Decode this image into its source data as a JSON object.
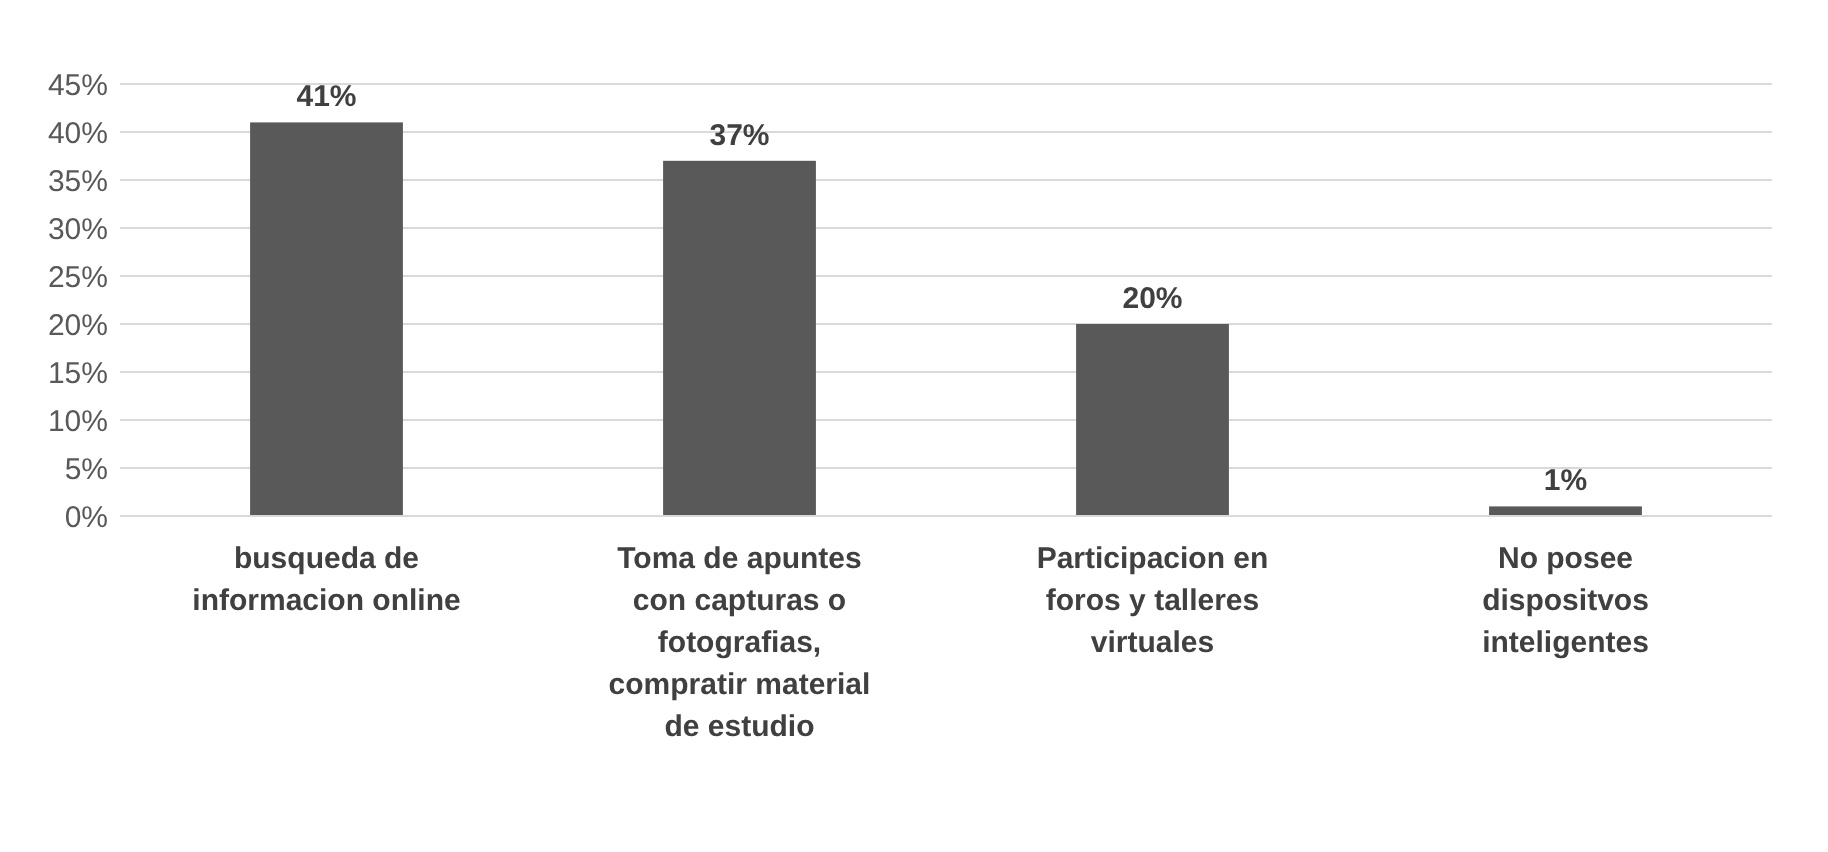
{
  "chart_data": {
    "type": "bar",
    "categories": [
      "busqueda de informacion online",
      "Toma de apuntes con capturas o fotografias, compratir material de estudio",
      "Participacion en foros y talleres virtuales",
      "No posee dispositvos inteligentes"
    ],
    "values": [
      41,
      37,
      20,
      1
    ],
    "value_labels": [
      "41%",
      "37%",
      "20%",
      "1%"
    ],
    "color": "#595959",
    "ylim": [
      0,
      45
    ],
    "yticks": [
      {
        "value": 0,
        "label": "0%"
      },
      {
        "value": 5,
        "label": "5%"
      },
      {
        "value": 10,
        "label": "10%"
      },
      {
        "value": 15,
        "label": "15%"
      },
      {
        "value": 20,
        "label": "20%"
      },
      {
        "value": 25,
        "label": "25%"
      },
      {
        "value": 30,
        "label": "30%"
      },
      {
        "value": 35,
        "label": "35%"
      },
      {
        "value": 40,
        "label": "40%"
      },
      {
        "value": 45,
        "label": "45%"
      }
    ],
    "grid": "y"
  }
}
